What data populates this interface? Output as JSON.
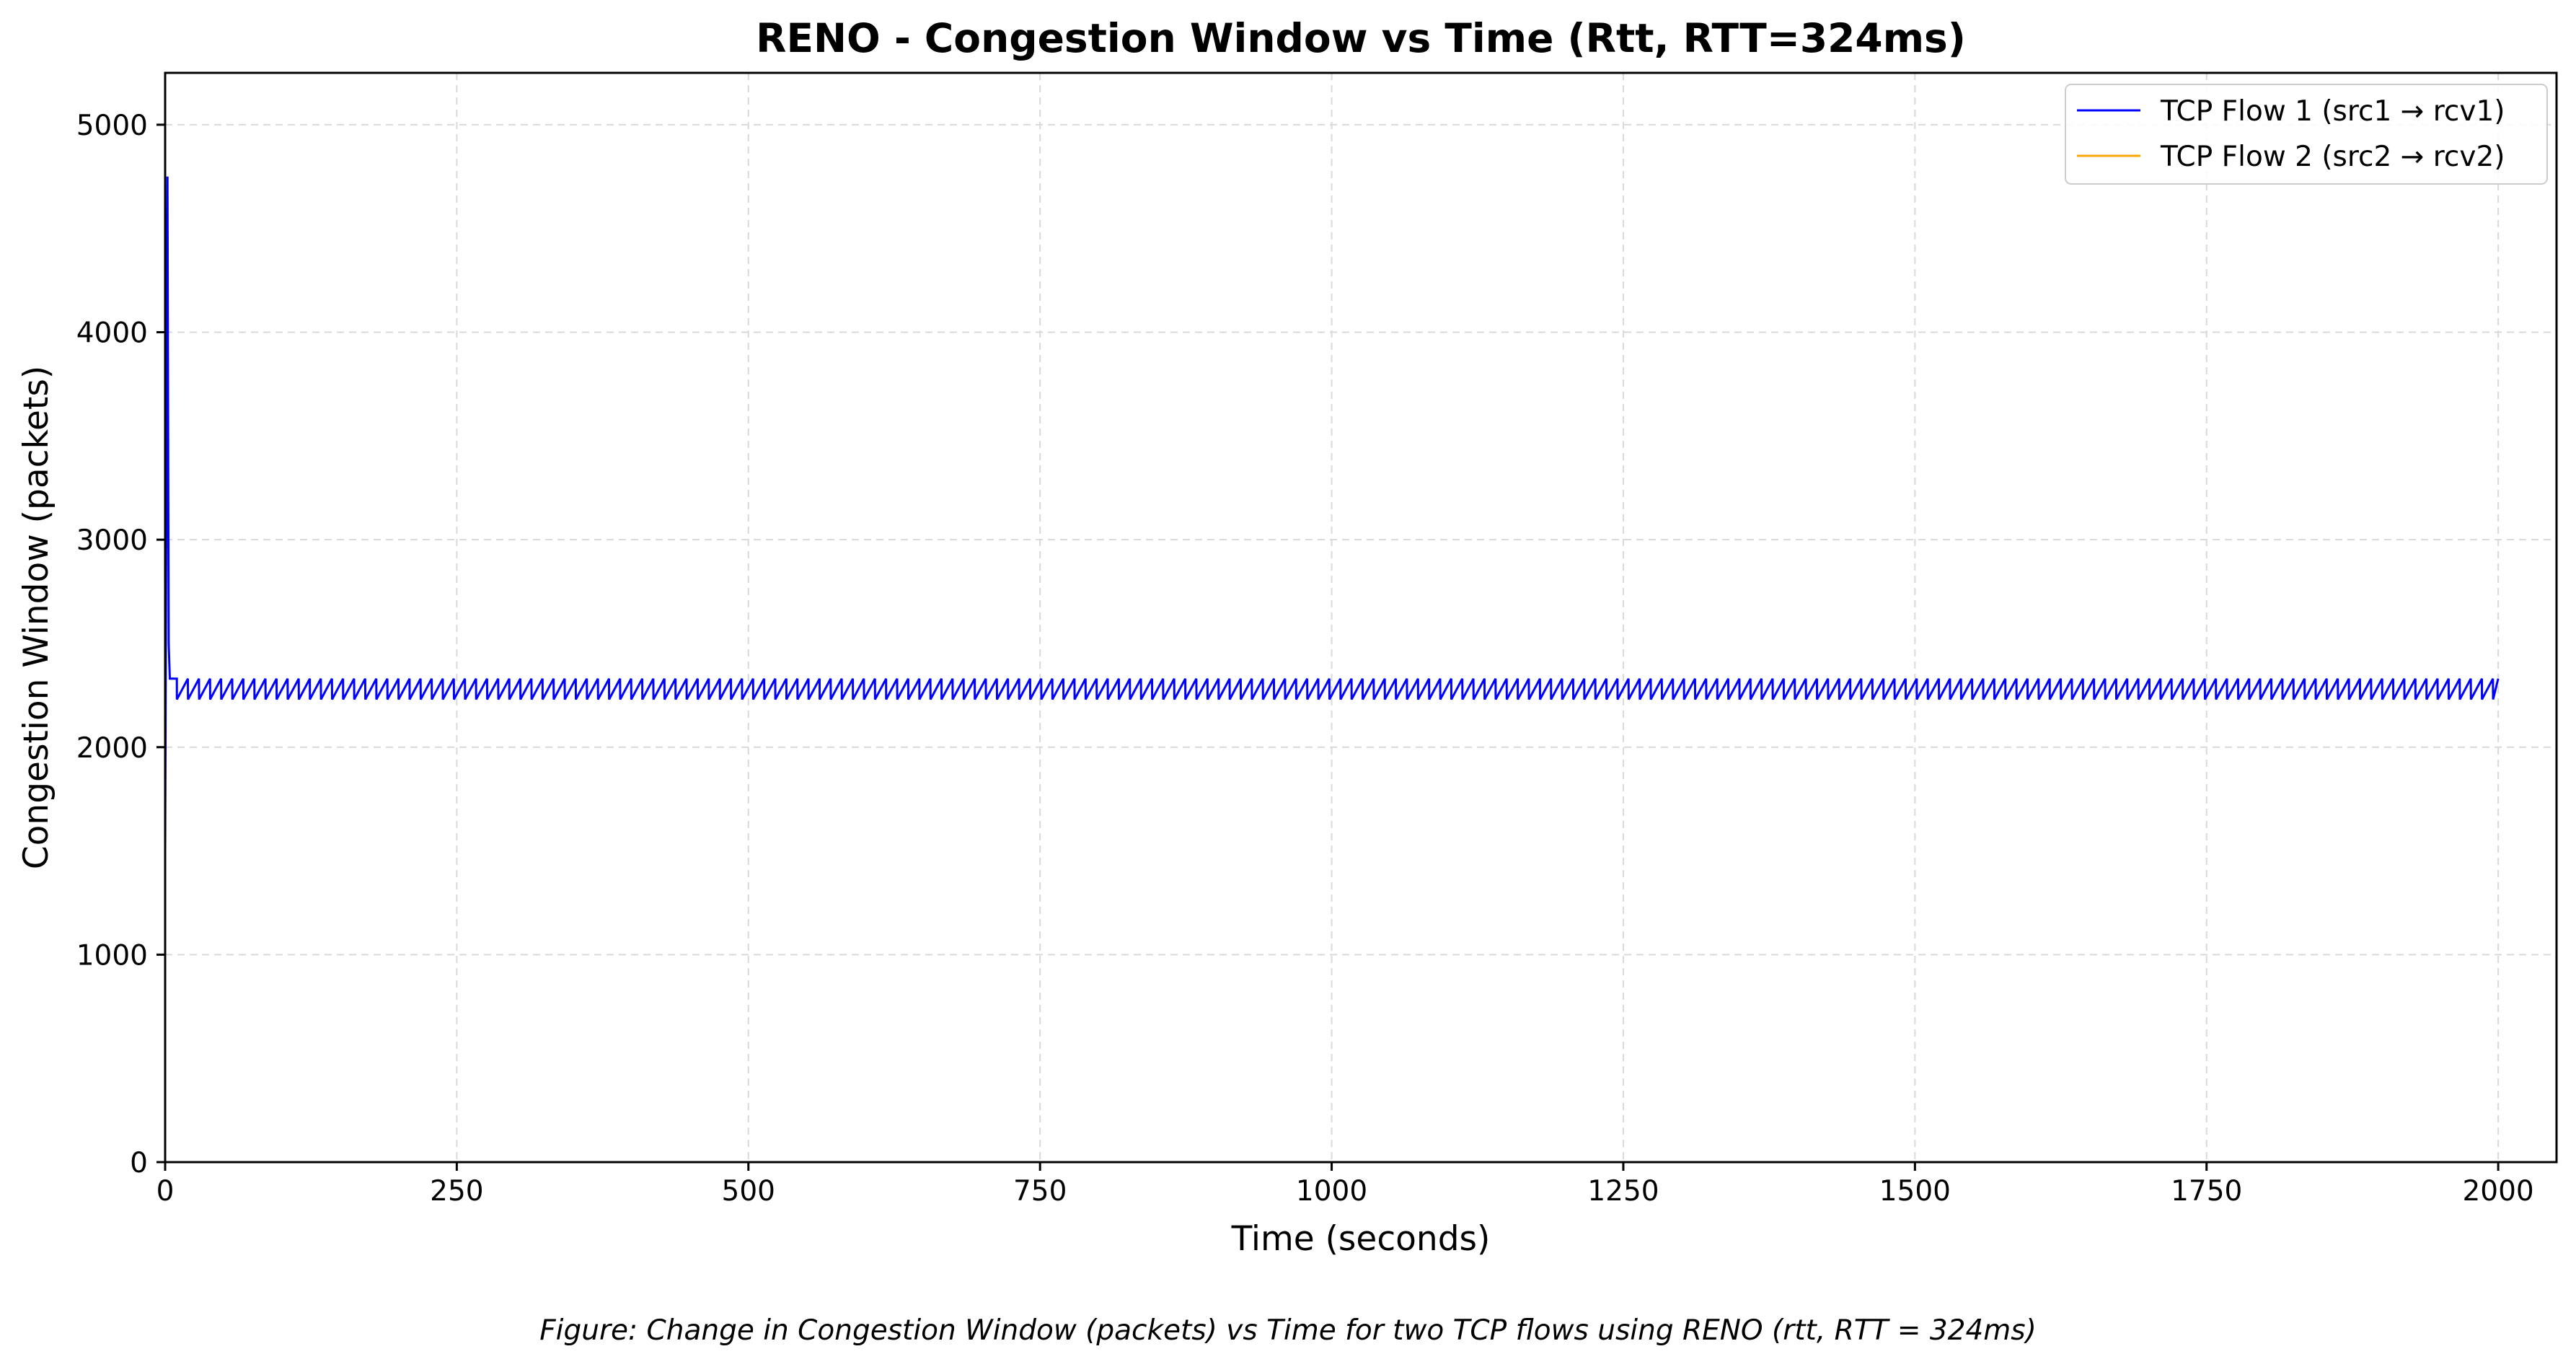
{
  "chart_data": {
    "type": "line",
    "title": "RENO - Congestion Window vs Time (Rtt, RTT=324ms)",
    "xlabel": "Time (seconds)",
    "ylabel": "Congestion Window (packets)",
    "xlim": [
      0,
      2050
    ],
    "ylim": [
      0,
      5250
    ],
    "xticks": [
      0,
      250,
      500,
      750,
      1000,
      1250,
      1500,
      1750,
      2000
    ],
    "xtick_labels": [
      "0",
      "250",
      "500",
      "750",
      "1000",
      "1250",
      "1500",
      "1750",
      "2000"
    ],
    "yticks": [
      0,
      1000,
      2000,
      3000,
      4000,
      5000
    ],
    "ytick_labels": [
      "0",
      "1000",
      "2000",
      "3000",
      "4000",
      "5000"
    ],
    "grid": true,
    "legend_position": "top-right",
    "series": [
      {
        "name": "TCP Flow 1 (src1 → rcv1)",
        "color": "#0000ff",
        "x": [
          0,
          2,
          3,
          4,
          10
        ],
        "y": [
          1500,
          4750,
          2500,
          2330,
          2330
        ],
        "pattern": {
          "description": "sawtooth oscillation",
          "x_start": 10,
          "x_end": 2000,
          "period_seconds": 9.5,
          "y_high": 2330,
          "y_low": 2230
        }
      },
      {
        "name": "TCP Flow 2 (src2 → rcv2)",
        "color": "#ffa500",
        "x": [],
        "y": []
      }
    ]
  },
  "caption": "Figure: Change in Congestion Window (packets) vs Time for two TCP flows using RENO (rtt, RTT = 324ms)"
}
